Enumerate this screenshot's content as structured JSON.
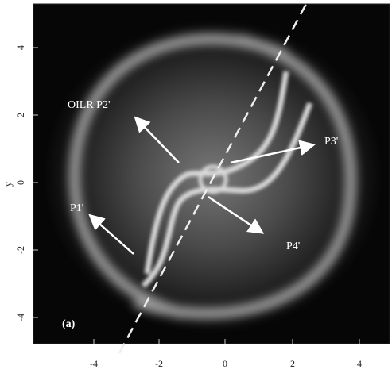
{
  "figure": {
    "panel_label": "(a)",
    "annotations": [
      "OILR P2'",
      "P3'",
      "P1'",
      "P4'"
    ],
    "xticks": [
      -4,
      -2,
      0,
      2,
      4
    ],
    "yticks": [
      4,
      2,
      0,
      -2,
      -4
    ],
    "ylabel": "y"
  }
}
